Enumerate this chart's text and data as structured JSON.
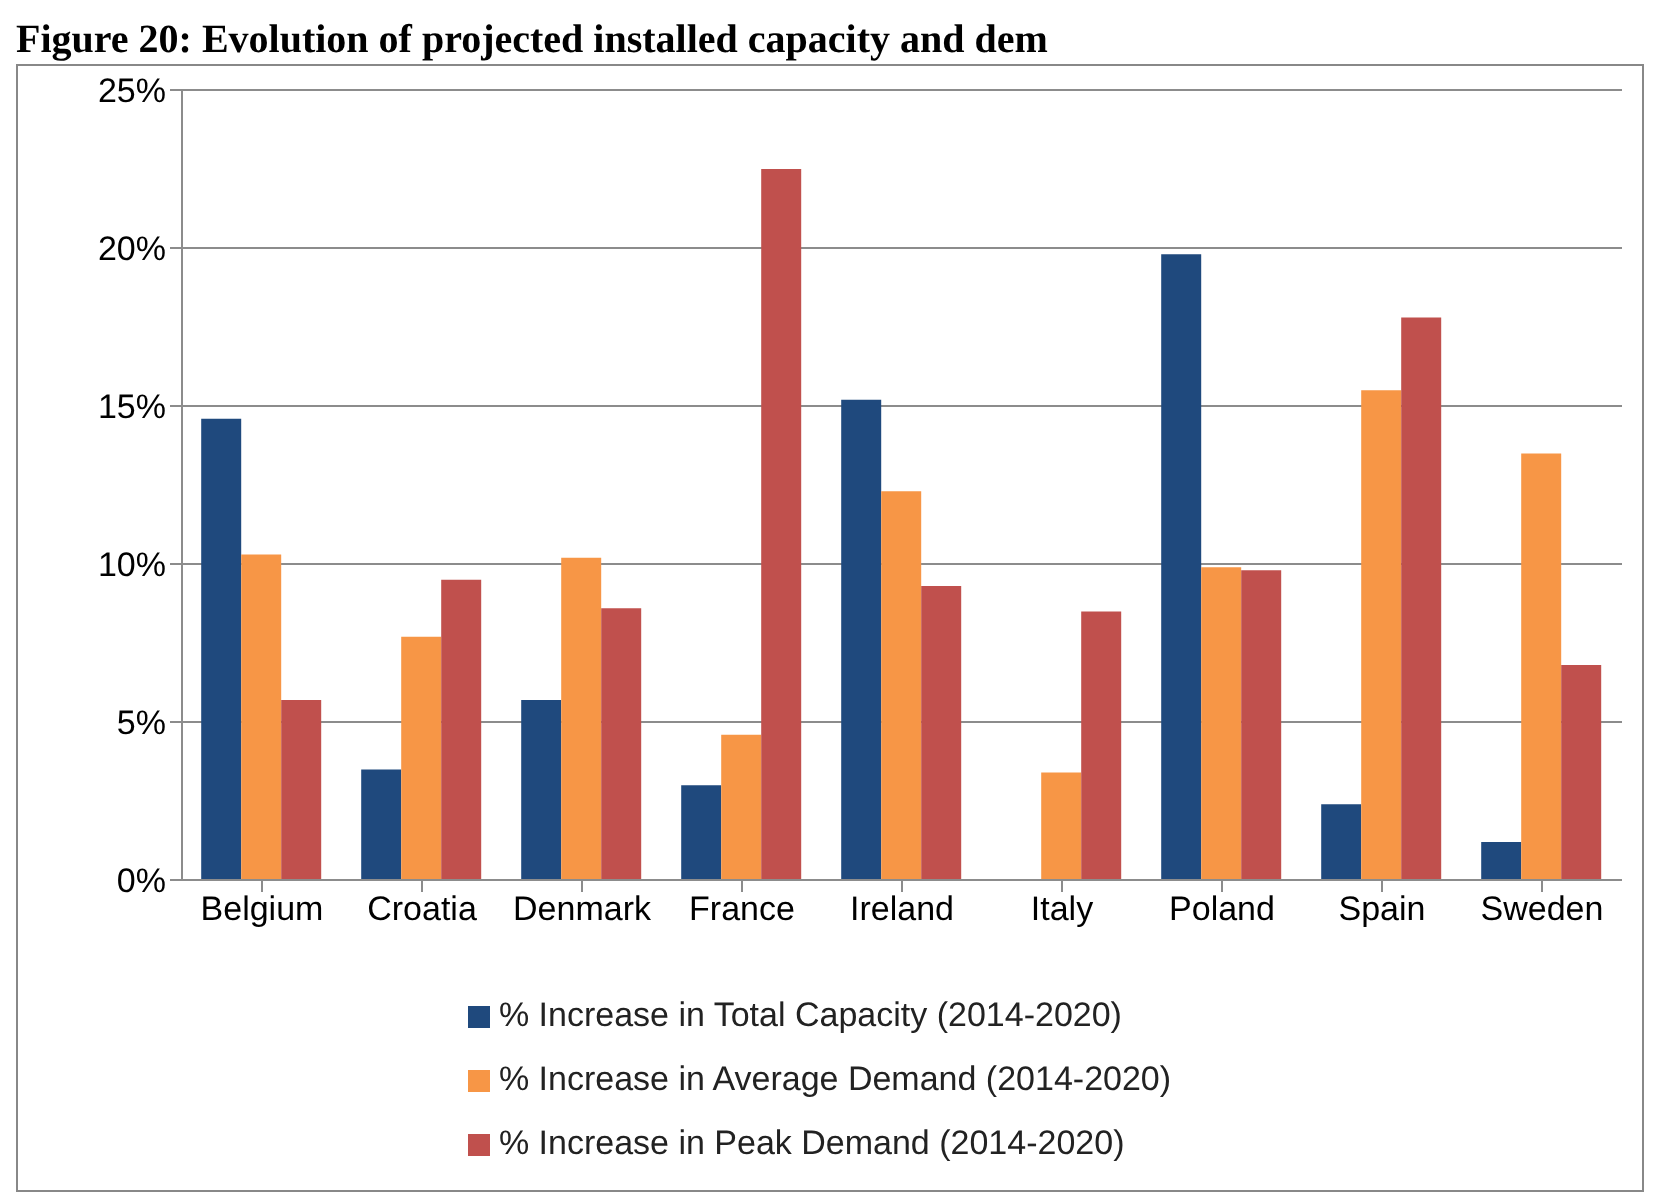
{
  "chart_data": {
    "type": "bar",
    "title": "Figure 20: Evolution of projected installed capacity and dem",
    "categories": [
      "Belgium",
      "Croatia",
      "Denmark",
      "France",
      "Ireland",
      "Italy",
      "Poland",
      "Spain",
      "Sweden"
    ],
    "series": [
      {
        "name": "% Increase in Total Capacity (2014-2020)",
        "color": "#1f497d",
        "values": [
          14.6,
          3.5,
          5.7,
          3.0,
          15.2,
          0,
          19.8,
          2.4,
          1.2
        ]
      },
      {
        "name": "% Increase in Average Demand (2014-2020)",
        "color": "#f79646",
        "values": [
          10.3,
          7.7,
          10.2,
          4.6,
          12.3,
          3.4,
          9.9,
          15.5,
          13.5
        ]
      },
      {
        "name": "% Increase in Peak Demand (2014-2020)",
        "color": "#c0504d",
        "values": [
          5.7,
          9.5,
          8.6,
          22.5,
          9.3,
          8.5,
          9.8,
          17.8,
          6.8
        ]
      }
    ],
    "ylim": [
      0,
      25
    ],
    "yticks": [
      {
        "value": 0,
        "label": "0%"
      },
      {
        "value": 5,
        "label": "5%"
      },
      {
        "value": 10,
        "label": "10%"
      },
      {
        "value": 15,
        "label": "15%"
      },
      {
        "value": 20,
        "label": "20%"
      },
      {
        "value": 25,
        "label": "25%"
      }
    ],
    "grid": "y",
    "legend": "bottom"
  }
}
